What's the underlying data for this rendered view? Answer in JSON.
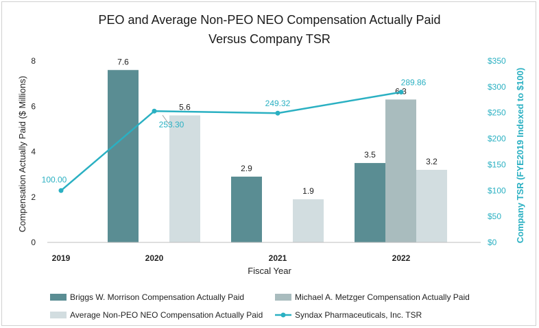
{
  "chart_data": {
    "type": "bar",
    "title_line1": "PEO and Average Non-PEO NEO Compensation Actually Paid",
    "title_line2": "Versus Company TSR",
    "xlabel": "Fiscal Year",
    "ylabel": "Compensation Actually Paid ($ Millions)",
    "y2label": "Company TSR (FYE2019 Indexed to $100)",
    "categories": [
      "2019",
      "2020",
      "2021",
      "2022"
    ],
    "ylim": [
      0,
      8
    ],
    "yticks": [
      "0",
      "2",
      "4",
      "6",
      "8"
    ],
    "y2lim": [
      0,
      350
    ],
    "y2ticks": [
      "$0",
      "$50",
      "$100",
      "$150",
      "$200",
      "$250",
      "$300",
      "$350"
    ],
    "series": [
      {
        "name": "Briggs W. Morrison Compensation Actually Paid",
        "color": "#5a8d93",
        "values": [
          null,
          7.6,
          2.9,
          3.5
        ],
        "labels": [
          "",
          "7.6",
          "2.9",
          "3.5"
        ]
      },
      {
        "name": "Michael A. Metzger Compensation Actually Paid",
        "color": "#a9bcbe",
        "values": [
          null,
          null,
          null,
          6.3
        ],
        "labels": [
          "",
          "",
          "",
          "6.3"
        ]
      },
      {
        "name": "Average Non-PEO NEO Compensation Actually Paid",
        "color": "#d2dde0",
        "values": [
          null,
          5.6,
          1.9,
          3.2
        ],
        "labels": [
          "",
          "5.6",
          "1.9",
          "3.2"
        ]
      }
    ],
    "line_series": {
      "name": "Syndax Pharmaceuticals, Inc. TSR",
      "color": "#2ab0c2",
      "values": [
        100.0,
        253.3,
        249.32,
        289.86
      ],
      "labels": [
        "100.00",
        "253.30",
        "249.32",
        "289.86"
      ]
    }
  }
}
